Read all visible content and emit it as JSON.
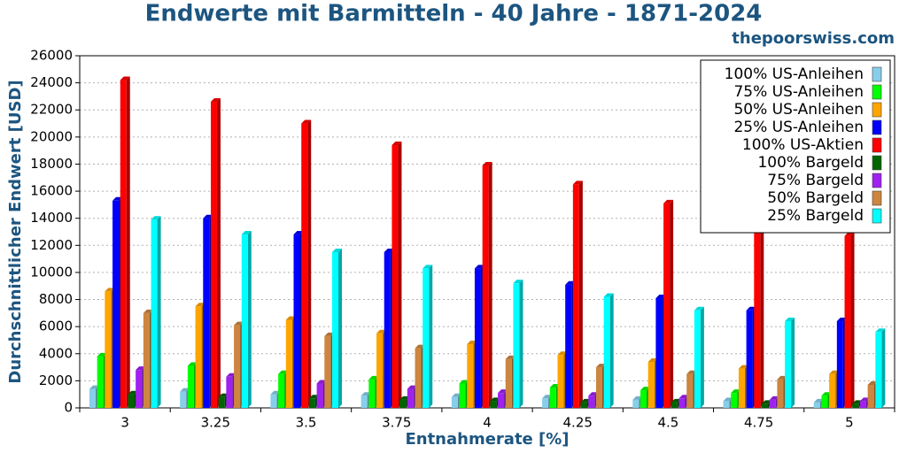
{
  "chart_data": {
    "type": "bar3d",
    "title": "Endwerte mit Barmitteln - 40 Jahre - 1871-2024",
    "subtitle": "thepoorswiss.com",
    "x_label": "Entnahmerate [%]",
    "y_label": "Durchschnittlicher Endwert [USD]",
    "categories": [
      "3",
      "3.25",
      "3.5",
      "3.75",
      "4",
      "4.25",
      "4.5",
      "4.75",
      "5"
    ],
    "ylim": [
      0,
      26000
    ],
    "yticks": [
      0,
      2000,
      4000,
      6000,
      8000,
      10000,
      12000,
      14000,
      16000,
      18000,
      20000,
      22000,
      24000,
      26000
    ],
    "grid": true,
    "legend": "upper right",
    "series": [
      {
        "name": "100% US-Anleihen",
        "color": "#87ceeb",
        "values": [
          1400,
          1200,
          1000,
          900,
          800,
          700,
          600,
          500,
          400
        ]
      },
      {
        "name": "75% US-Anleihen",
        "color": "#00ff00",
        "values": [
          3800,
          3100,
          2500,
          2100,
          1800,
          1500,
          1300,
          1100,
          900
        ]
      },
      {
        "name": "50% US-Anleihen",
        "color": "#ffa500",
        "values": [
          8600,
          7500,
          6500,
          5500,
          4700,
          3900,
          3400,
          2900,
          2500
        ]
      },
      {
        "name": "25% US-Anleihen",
        "color": "#0000ff",
        "values": [
          15300,
          14000,
          12800,
          11500,
          10300,
          9100,
          8100,
          7200,
          6400
        ]
      },
      {
        "name": "100% US-Aktien",
        "color": "#ff0000",
        "values": [
          24200,
          22600,
          21000,
          19400,
          17900,
          16500,
          15100,
          13700,
          12700
        ]
      },
      {
        "name": "100% Bargeld",
        "color": "#006400",
        "values": [
          1000,
          800,
          700,
          600,
          500,
          400,
          400,
          300,
          300
        ]
      },
      {
        "name": "75% Bargeld",
        "color": "#a020f0",
        "values": [
          2800,
          2300,
          1800,
          1400,
          1100,
          900,
          700,
          600,
          500
        ]
      },
      {
        "name": "50% Bargeld",
        "color": "#cd853f",
        "values": [
          7000,
          6100,
          5300,
          4400,
          3600,
          3000,
          2500,
          2100,
          1700
        ]
      },
      {
        "name": "25% Bargeld",
        "color": "#00ffff",
        "values": [
          13900,
          12800,
          11500,
          10300,
          9200,
          8200,
          7200,
          6400,
          5600
        ]
      }
    ]
  }
}
